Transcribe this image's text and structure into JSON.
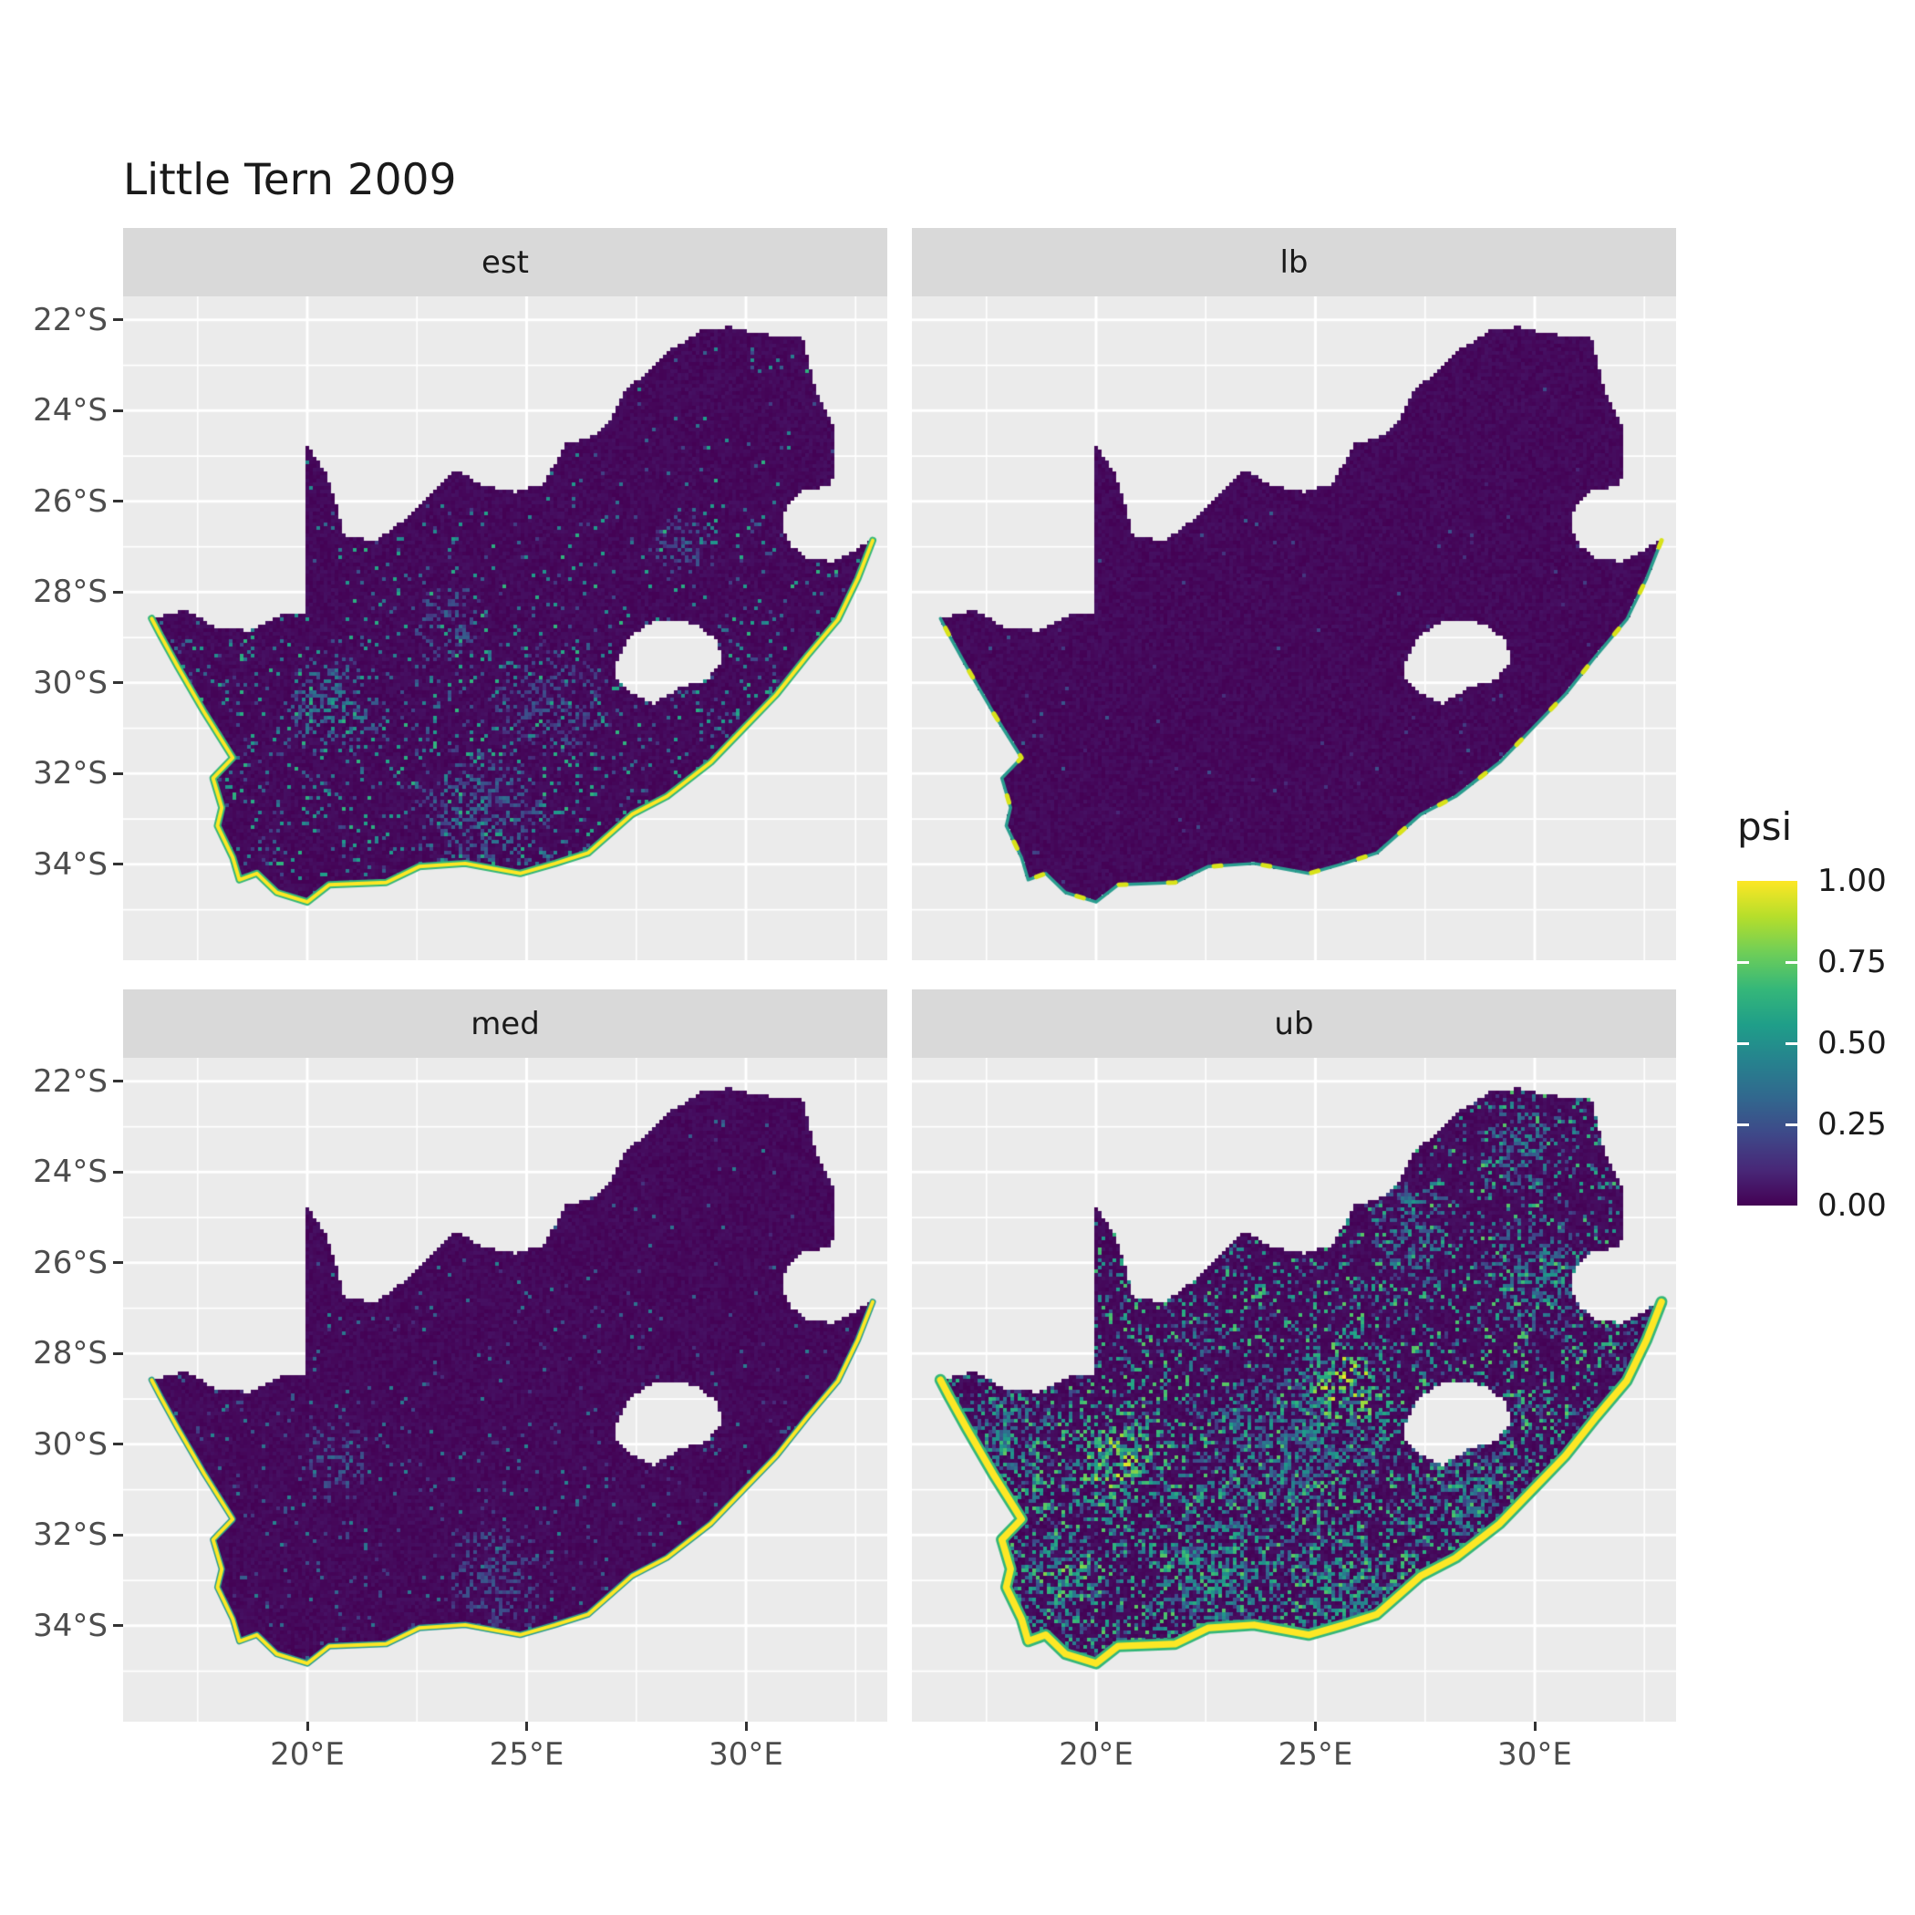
{
  "title": "Little Tern 2009",
  "chart_data": {
    "type": "heatmap",
    "title": "Little Tern 2009",
    "facet_variable_values": [
      "est",
      "lb",
      "med",
      "ub"
    ],
    "legend": {
      "title": "psi",
      "position": "right",
      "ticks": [
        {
          "value": 1.0,
          "label": "1.00"
        },
        {
          "value": 0.75,
          "label": "0.75"
        },
        {
          "value": 0.5,
          "label": "0.50"
        },
        {
          "value": 0.25,
          "label": "0.25"
        },
        {
          "value": 0.0,
          "label": "0.00"
        }
      ],
      "viridis": [
        "#440154",
        "#482878",
        "#3e4989",
        "#31688e",
        "#26828e",
        "#1f9e89",
        "#35b779",
        "#6ece58",
        "#b5de2b",
        "#fde725"
      ]
    },
    "x_axis": {
      "label": "",
      "ticks": [
        {
          "value": 20,
          "label": "20°E"
        },
        {
          "value": 25,
          "label": "25°E"
        },
        {
          "value": 30,
          "label": "30°E"
        }
      ],
      "minor": [
        17.5,
        22.5,
        27.5,
        32.5
      ],
      "range": [
        15.8,
        33.22
      ]
    },
    "y_axis": {
      "label": "",
      "ticks": [
        {
          "value": -22,
          "label": "22°S"
        },
        {
          "value": -24,
          "label": "24°S"
        },
        {
          "value": -26,
          "label": "26°S"
        },
        {
          "value": -28,
          "label": "28°S"
        },
        {
          "value": -30,
          "label": "30°S"
        },
        {
          "value": -32,
          "label": "32°S"
        },
        {
          "value": -34,
          "label": "34°S"
        }
      ],
      "minor": [
        -23,
        -25,
        -27,
        -29,
        -31,
        -33,
        -35
      ],
      "range": [
        -36.11,
        -21.48
      ]
    },
    "colors": {
      "panel_bg": "#ebebeb",
      "strip_bg": "#d9d9d9",
      "grid": "#ffffff",
      "strip_text": "#1a1a1a",
      "axis_text": "#4d4d4d",
      "tick": "#333333",
      "title_text": "#1a1a1a",
      "base_psi": "#440154"
    },
    "facets": [
      {
        "label": "est",
        "spot_p": 0.045,
        "spot_v": [
          0.15,
          0.65
        ],
        "south_boost": 2.0,
        "north_damp": 0.45,
        "clusters": [
          [
            20.6,
            -30.5,
            1.3,
            0.45
          ],
          [
            24.0,
            -33.0,
            1.8,
            0.35
          ],
          [
            23.2,
            -28.7,
            1.0,
            0.3
          ],
          [
            28.5,
            -27.0,
            0.8,
            0.3
          ],
          [
            25.5,
            -30.5,
            1.5,
            0.25
          ]
        ],
        "coast": {
          "color": "#fde725",
          "width": 4,
          "fringe": "#35b779",
          "fringe_width": 8
        }
      },
      {
        "label": "lb",
        "spot_p": 0.004,
        "spot_v": [
          0.08,
          0.3
        ],
        "south_boost": 1.5,
        "north_damp": 0.5,
        "clusters": [],
        "coast": {
          "color": "#2a9d8f",
          "width": 3.5,
          "dash_color": "#d8e219",
          "dash": [
            8,
            46
          ]
        }
      },
      {
        "label": "med",
        "spot_p": 0.018,
        "spot_v": [
          0.1,
          0.45
        ],
        "south_boost": 1.8,
        "north_damp": 0.5,
        "clusters": [
          [
            20.6,
            -30.4,
            1.0,
            0.3
          ],
          [
            24.3,
            -33.0,
            1.5,
            0.25
          ]
        ],
        "coast": {
          "color": "#fde725",
          "width": 4,
          "fringe": "#2a9d8f",
          "fringe_width": 7
        }
      },
      {
        "label": "ub",
        "spot_p": 0.2,
        "spot_v": [
          0.15,
          0.75
        ],
        "south_boost": 1.6,
        "north_damp": 0.55,
        "clusters": [
          [
            20.4,
            -30.4,
            1.2,
            0.95
          ],
          [
            25.7,
            -28.7,
            1.4,
            0.95
          ],
          [
            19.3,
            -32.9,
            1.0,
            0.85
          ],
          [
            22.8,
            -32.9,
            1.6,
            0.6
          ],
          [
            25.6,
            -33.1,
            1.4,
            0.6
          ],
          [
            30.2,
            -26.3,
            1.6,
            0.5
          ],
          [
            27.2,
            -25.3,
            1.2,
            0.5
          ],
          [
            29.8,
            -23.5,
            1.3,
            0.45
          ],
          [
            24.2,
            -30.3,
            2.2,
            0.4
          ],
          [
            28.6,
            -31.0,
            1.2,
            0.4
          ],
          [
            18.0,
            -30.0,
            1.3,
            0.5
          ]
        ],
        "coast": {
          "color": "#fde725",
          "width": 7.5,
          "fringe": "#35b779",
          "fringe_width": 13
        }
      }
    ],
    "map": {
      "region": "South Africa",
      "outline": [
        [
          16.45,
          -28.58
        ],
        [
          17.2,
          -28.4
        ],
        [
          18.0,
          -28.8
        ],
        [
          18.7,
          -28.85
        ],
        [
          19.4,
          -28.5
        ],
        [
          19.99,
          -28.43
        ],
        [
          19.99,
          -24.75
        ],
        [
          20.45,
          -25.4
        ],
        [
          20.65,
          -26.0
        ],
        [
          20.85,
          -26.8
        ],
        [
          21.6,
          -26.85
        ],
        [
          22.2,
          -26.4
        ],
        [
          22.75,
          -25.9
        ],
        [
          23.4,
          -25.3
        ],
        [
          24.0,
          -25.65
        ],
        [
          24.75,
          -25.8
        ],
        [
          25.4,
          -25.6
        ],
        [
          25.9,
          -24.72
        ],
        [
          26.45,
          -24.6
        ],
        [
          26.9,
          -24.25
        ],
        [
          27.2,
          -23.6
        ],
        [
          27.8,
          -23.1
        ],
        [
          28.3,
          -22.65
        ],
        [
          29.05,
          -22.2
        ],
        [
          29.65,
          -22.15
        ],
        [
          30.3,
          -22.3
        ],
        [
          31.3,
          -22.4
        ],
        [
          31.6,
          -23.6
        ],
        [
          31.98,
          -24.3
        ],
        [
          32.05,
          -25.1
        ],
        [
          31.95,
          -25.65
        ],
        [
          31.3,
          -25.78
        ],
        [
          30.92,
          -26.1
        ],
        [
          30.8,
          -26.55
        ],
        [
          31.0,
          -26.95
        ],
        [
          31.4,
          -27.25
        ],
        [
          31.97,
          -27.32
        ],
        [
          32.89,
          -26.86
        ],
        [
          32.55,
          -27.7
        ],
        [
          32.1,
          -28.6
        ],
        [
          31.4,
          -29.4
        ],
        [
          30.7,
          -30.25
        ],
        [
          30.0,
          -30.95
        ],
        [
          29.2,
          -31.75
        ],
        [
          28.2,
          -32.5
        ],
        [
          27.4,
          -32.9
        ],
        [
          26.4,
          -33.75
        ],
        [
          25.65,
          -33.98
        ],
        [
          24.85,
          -34.2
        ],
        [
          23.6,
          -33.98
        ],
        [
          22.55,
          -34.05
        ],
        [
          21.8,
          -34.4
        ],
        [
          20.5,
          -34.45
        ],
        [
          20.0,
          -34.83
        ],
        [
          19.3,
          -34.62
        ],
        [
          18.85,
          -34.2
        ],
        [
          18.45,
          -34.34
        ],
        [
          18.3,
          -33.85
        ],
        [
          17.95,
          -33.15
        ],
        [
          18.05,
          -32.75
        ],
        [
          17.85,
          -32.1
        ],
        [
          18.3,
          -31.65
        ],
        [
          17.65,
          -30.65
        ],
        [
          17.05,
          -29.65
        ],
        [
          16.65,
          -28.95
        ]
      ],
      "lesotho": [
        [
          27.0,
          -29.65
        ],
        [
          27.35,
          -29.0
        ],
        [
          27.75,
          -28.7
        ],
        [
          28.35,
          -28.6
        ],
        [
          28.95,
          -28.75
        ],
        [
          29.35,
          -29.1
        ],
        [
          29.45,
          -29.55
        ],
        [
          29.1,
          -29.95
        ],
        [
          28.5,
          -30.1
        ],
        [
          27.9,
          -30.45
        ],
        [
          27.35,
          -30.2
        ],
        [
          27.05,
          -29.9
        ]
      ],
      "coast_start_index": 37
    }
  }
}
